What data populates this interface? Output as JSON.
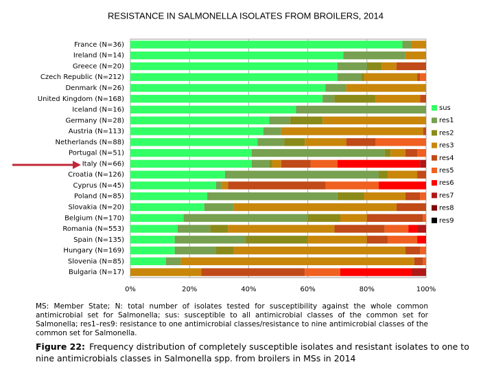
{
  "chart_data": {
    "type": "bar",
    "orientation": "horizontal",
    "stacked": true,
    "title": "RESISTANCE IN SALMONELLA ISOLATES FROM BROILERS, 2014",
    "categories": [
      "France (N=36)",
      "Ireland (N=14)",
      "Greece (N=20)",
      "Czech Republic (N=212)",
      "Denmark (N=26)",
      "United Kingdom (N=168)",
      "Iceland (N=16)",
      "Germany (N=28)",
      "Austria (N=113)",
      "Netherlands (N=88)",
      "Portugal (N=51)",
      "Italy (N=66)",
      "Croatia (N=126)",
      "Cyprus (N=45)",
      "Poland (N=85)",
      "Slovakia (N=20)",
      "Belgium (N=170)",
      "Romania (N=553)",
      "Spain (N=135)",
      "Hungary (N=169)",
      "Slovenia (N=85)",
      "Bulgaria (N=17)"
    ],
    "series": [
      {
        "name": "sus",
        "color": "#33ff66",
        "values": [
          92,
          72,
          70,
          70,
          66,
          65,
          56,
          47,
          45,
          43,
          41,
          41,
          32,
          29,
          26,
          25,
          18,
          16,
          15,
          15,
          12,
          0
        ]
      },
      {
        "name": "res1",
        "color": "#77a050",
        "values": [
          3,
          21,
          10,
          8,
          7,
          4,
          44,
          7,
          6,
          9,
          45,
          6,
          52,
          2,
          44,
          10,
          42,
          11,
          24,
          14,
          5,
          0
        ]
      },
      {
        "name": "res2",
        "color": "#8a8a1a",
        "values": [
          0,
          0,
          5,
          1,
          0,
          14,
          0,
          11,
          0,
          7,
          2,
          1,
          3,
          0,
          9,
          0,
          11,
          6,
          21,
          6,
          0,
          0
        ]
      },
      {
        "name": "res3",
        "color": "#c8860a",
        "values": [
          5,
          7,
          5,
          18,
          27,
          15,
          0,
          35,
          48,
          14,
          5,
          3,
          10,
          2,
          14,
          55,
          9,
          36,
          20,
          58,
          79,
          24
        ]
      },
      {
        "name": "res4",
        "color": "#c04a18",
        "values": [
          0,
          0,
          10,
          1,
          0,
          2,
          0,
          0,
          1,
          10,
          4,
          10,
          3,
          33,
          5,
          10,
          19,
          17,
          7,
          5,
          3,
          35
        ]
      },
      {
        "name": "res5",
        "color": "#f06020",
        "values": [
          0,
          0,
          0,
          2,
          0,
          0,
          0,
          0,
          0,
          17,
          3,
          9,
          0,
          18,
          2,
          0,
          1,
          8,
          10,
          2,
          1,
          12
        ]
      },
      {
        "name": "res6",
        "color": "#ff0000",
        "values": [
          0,
          0,
          0,
          0,
          0,
          0,
          0,
          0,
          0,
          0,
          0,
          28,
          0,
          16,
          0,
          0,
          0,
          3,
          3,
          0,
          0,
          24
        ]
      },
      {
        "name": "res7",
        "color": "#b01818",
        "values": [
          0,
          0,
          0,
          0,
          0,
          0,
          0,
          0,
          0,
          0,
          0,
          2,
          0,
          0,
          0,
          0,
          0,
          3,
          0,
          0,
          0,
          5
        ]
      },
      {
        "name": "res8",
        "color": "#800000",
        "values": [
          0,
          0,
          0,
          0,
          0,
          0,
          0,
          0,
          0,
          0,
          0,
          0,
          0,
          0,
          0,
          0,
          0,
          0,
          0,
          0,
          0,
          0
        ]
      },
      {
        "name": "res9",
        "color": "#000000",
        "values": [
          0,
          0,
          0,
          0,
          0,
          0,
          0,
          0,
          0,
          0,
          0,
          0,
          0,
          0,
          0,
          0,
          0,
          0,
          0,
          0,
          0,
          0
        ]
      }
    ],
    "xlim": [
      0,
      100
    ],
    "xticks": [
      {
        "value": 0,
        "label": "0%"
      },
      {
        "value": 20,
        "label": "20%"
      },
      {
        "value": 40,
        "label": "40%"
      },
      {
        "value": 60,
        "label": "60%"
      },
      {
        "value": 80,
        "label": "80%"
      },
      {
        "value": 100,
        "label": "100%"
      }
    ],
    "grid": true,
    "legend": "right",
    "footnote": "MS: Member State; N: total number of isolates tested for susceptibility against the whole common antimicrobial set for Salmonella; sus: susceptible to all antimicrobial classes of the common set for Salmonella; res1–res9: resistance to one antimicrobial classes/resistance to nine antimicrobial classes of the common set for Salmonella.",
    "figure_label": "Figure 22:",
    "figure_caption": "Frequency distribution of completely susceptible isolates and resistant isolates to one to nine antimicrobials classes in Salmonella spp. from broilers in MSs in 2014"
  }
}
